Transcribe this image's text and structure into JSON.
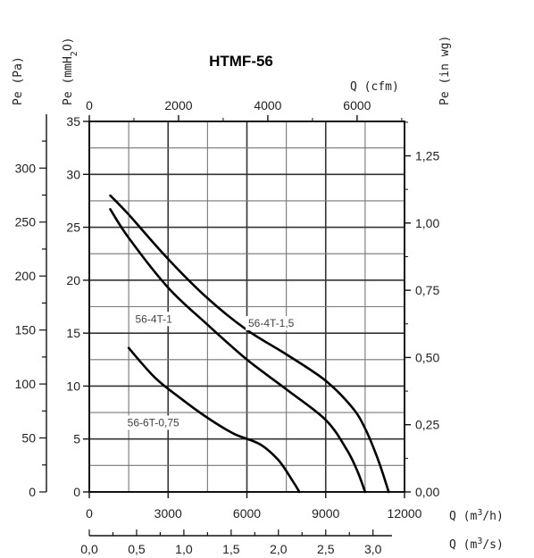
{
  "chart_data": {
    "type": "line",
    "title": "HTMF-56",
    "xaxes": {
      "bottom_m3h": {
        "label_base": "Q (m",
        "label_sup": "3",
        "label_tail": "/h)",
        "min": 0,
        "max": 12000,
        "ticks": [
          "0",
          "3000",
          "6000",
          "9000",
          "12000"
        ]
      },
      "bottom_m3s": {
        "label_base": "Q (m",
        "label_sup": "3",
        "label_tail": "/s)",
        "ticks": [
          "0,0",
          "0,5",
          "1,0",
          "1,5",
          "2,0",
          "2,5",
          "3,0"
        ]
      },
      "top_cfm": {
        "label": "Q (cfm)",
        "ticks": [
          "0",
          "2000",
          "4000",
          "6000"
        ]
      }
    },
    "yaxes": {
      "left_mmH2O": {
        "label_base": "Pe (mmH",
        "label_sub": "2",
        "label_tail": "O)",
        "min": 0,
        "max": 35,
        "ticks": [
          "0",
          "5",
          "10",
          "15",
          "20",
          "25",
          "30",
          "35"
        ]
      },
      "left_pa": {
        "label": "Pe (Pa)",
        "ticks": [
          "0",
          "50",
          "100",
          "150",
          "200",
          "250",
          "300"
        ]
      },
      "right_inwg": {
        "label": "Pe (in wg)",
        "ticks": [
          "0,00",
          "0,25",
          "0,50",
          "0,75",
          "1,00",
          "1,25"
        ]
      }
    },
    "grid": true,
    "series": [
      {
        "name": "56-4T-1,5",
        "x": [
          800,
          1500,
          3000,
          4500,
          6000,
          7500,
          9000,
          10000,
          10500,
          11000,
          11400
        ],
        "y": [
          28,
          26.2,
          22,
          18.3,
          15.3,
          13,
          10.5,
          8,
          6,
          3,
          0
        ]
      },
      {
        "name": "56-4T-1",
        "x": [
          800,
          1500,
          3000,
          4500,
          6000,
          7500,
          9000,
          9800,
          10200,
          10500
        ],
        "y": [
          26.7,
          24,
          19.3,
          15.8,
          12.5,
          9.7,
          6.8,
          4,
          2,
          0
        ]
      },
      {
        "name": "56-6T-0,75",
        "x": [
          1500,
          2500,
          3500,
          4500,
          5500,
          6500,
          7200,
          7700,
          8000
        ],
        "y": [
          13.6,
          10.8,
          8.8,
          7,
          5.5,
          4.5,
          3,
          1.2,
          0
        ]
      }
    ]
  }
}
